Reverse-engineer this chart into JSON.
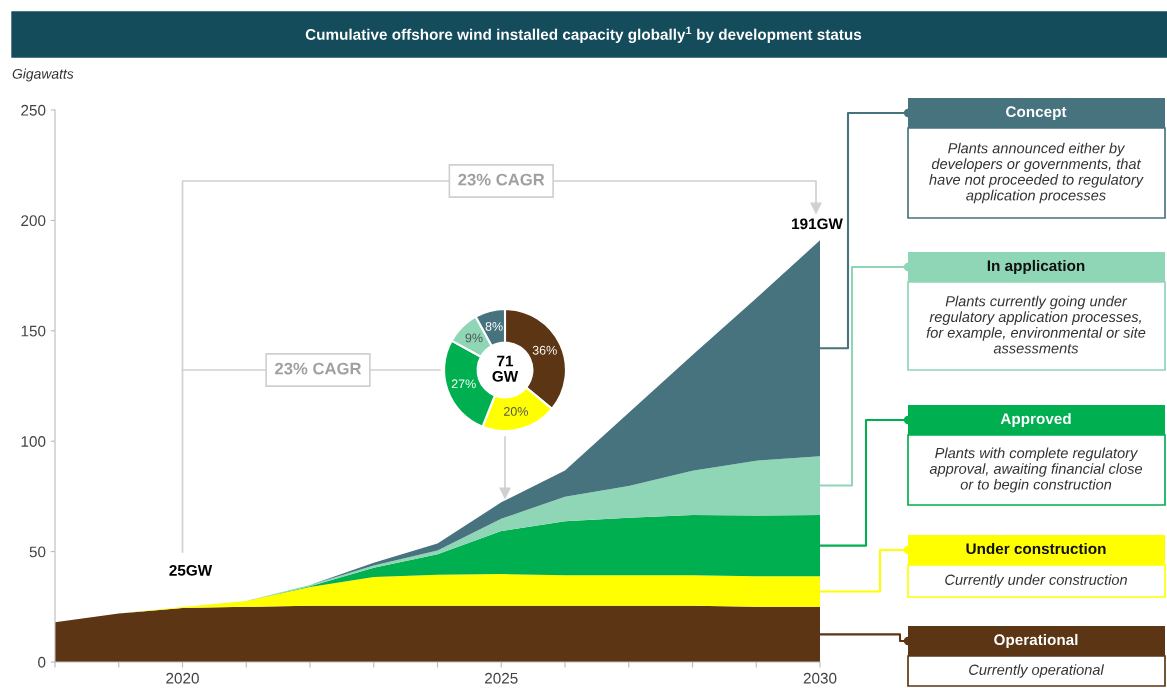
{
  "chart_data": [
    {
      "type": "area",
      "title": "Cumulative offshore wind installed capacity globally$^{1}$ by development status",
      "ylabel": "Gigawatts",
      "stacked": true,
      "legend": "right",
      "grid": false,
      "x": [
        2018,
        2019,
        2020,
        2021,
        2022,
        2023,
        2024,
        2025,
        2026,
        2027,
        2028,
        2029,
        2030
      ],
      "xlim": [
        2018,
        2030
      ],
      "xticks": [
        {
          "value": 2018,
          "label": null
        },
        {
          "value": 2019,
          "label": null
        },
        2020,
        {
          "value": 2021,
          "label": null
        },
        {
          "value": 2022,
          "label": null
        },
        {
          "value": 2023,
          "label": null
        },
        {
          "value": 2024,
          "label": null
        },
        2025,
        {
          "value": 2026,
          "label": null
        },
        {
          "value": 2027,
          "label": null
        },
        {
          "value": 2028,
          "label": null
        },
        {
          "value": 2029,
          "label": null
        },
        2030
      ],
      "ylim": [
        0,
        250
      ],
      "yticks": [
        0,
        50,
        100,
        150,
        200,
        250
      ],
      "series": [
        {
          "name": "Operational",
          "color": "#5b3514",
          "values": [
            18,
            22,
            24.5,
            25,
            25.5,
            25.5,
            25.5,
            25.5,
            25.5,
            25.5,
            25.5,
            25,
            25
          ]
        },
        {
          "name": "Under construction",
          "color": "#ffff00",
          "values": [
            0,
            0,
            0.4,
            2.6,
            8.5,
            13,
            14,
            14.3,
            13.8,
            13.8,
            13.8,
            13.8,
            13.8
          ]
        },
        {
          "name": "Approved",
          "color": "#00b050",
          "values": [
            0,
            0,
            0,
            0,
            0.3,
            4.2,
            9.3,
            19.5,
            24.5,
            26,
            27.3,
            27.5,
            27.8
          ]
        },
        {
          "name": "In application",
          "color": "#8ed6b6",
          "values": [
            0,
            0,
            0,
            0,
            0.6,
            1,
            1.7,
            5.6,
            11,
            14.4,
            20,
            24.9,
            26.6
          ]
        },
        {
          "name": "Concept",
          "color": "#47737f",
          "values": [
            0,
            0,
            0,
            0,
            0,
            1.3,
            3.2,
            7.4,
            11.9,
            33.2,
            52.4,
            73.5,
            97.8
          ]
        }
      ],
      "annotations": [
        {
          "text": "25GW",
          "x": 2020,
          "y": 25
        },
        {
          "text": "191GW",
          "x": 2030,
          "y": 191
        },
        "23% CAGR",
        "23% CAGR"
      ]
    },
    {
      "type": "donut",
      "categories": [
        null,
        null,
        null,
        null,
        null
      ],
      "values": [
        36,
        20,
        27,
        9,
        8
      ],
      "colors": [
        "#5b3514",
        "#ffff00",
        "#00b050",
        "#8ed6b6",
        "#47737f"
      ],
      "value_labels": [
        "36%",
        "20%",
        "27%",
        "9%",
        "8%"
      ],
      "annotations": [
        "71\nGW"
      ]
    },
    {
      "type": "other",
      "annotations": [
        "Plants announced either by\ndevelopers or governments, that\nhave not proceeded to regulatory\napplication processes",
        "Plants currently going under\nregulatory application processes,\nfor example, environmental or site\nassessments",
        "Plants with complete regulatory\napproval, awaiting financial close\nor to begin construction",
        "Currently under construction",
        "Currently operational"
      ]
    }
  ]
}
